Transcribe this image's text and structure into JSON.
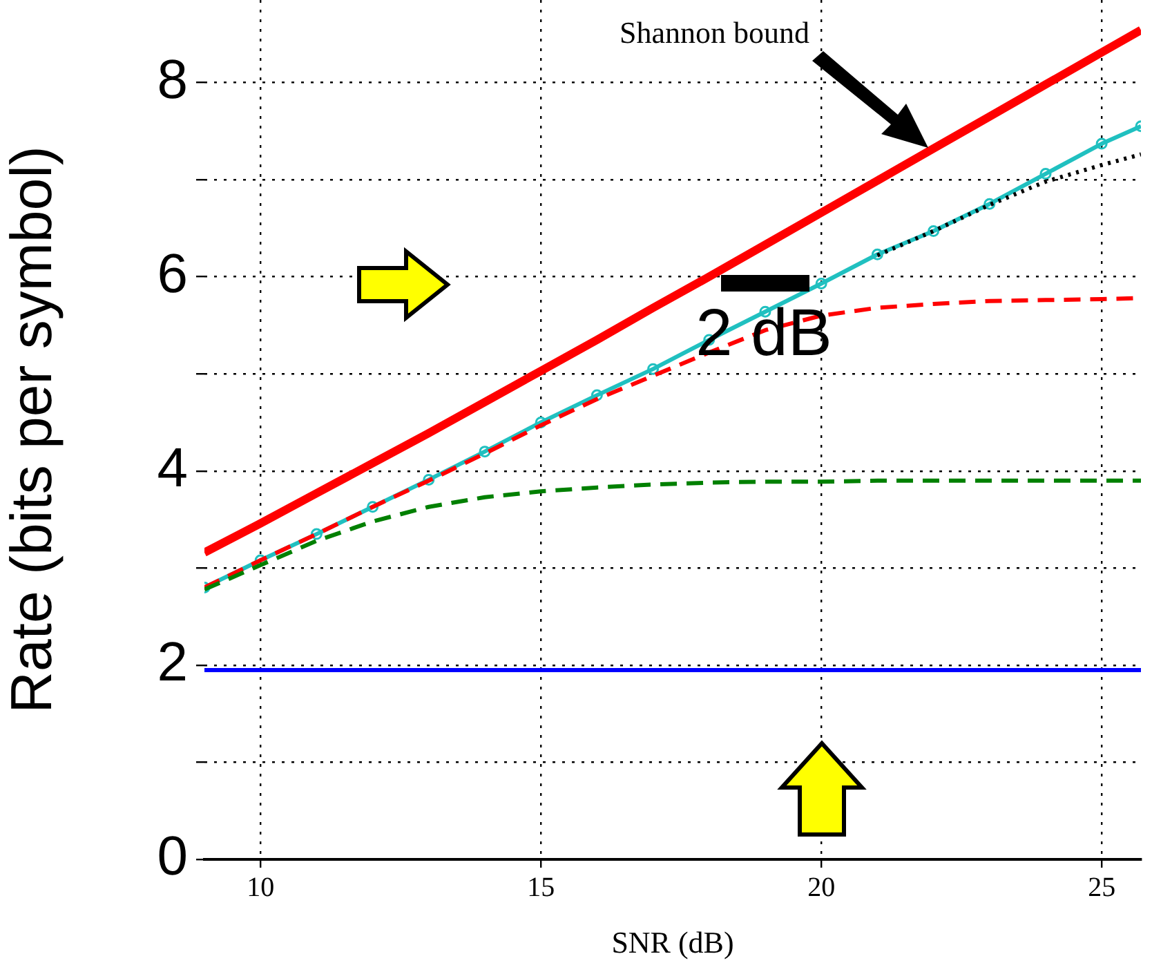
{
  "chart_data": {
    "type": "line",
    "xlabel": "SNR (dB)",
    "ylabel": "Rate (bits per symbol)",
    "x": [
      9,
      10,
      11,
      12,
      13,
      14,
      15,
      16,
      17,
      18,
      19,
      20,
      21,
      22,
      23,
      24,
      25,
      25.7
    ],
    "series": [
      {
        "color": "#ff0000",
        "line_style": "solid",
        "marker": "none",
        "values": [
          3.16,
          3.46,
          3.77,
          4.08,
          4.39,
          4.71,
          5.03,
          5.35,
          5.68,
          6.0,
          6.33,
          6.66,
          6.99,
          7.32,
          7.65,
          7.98,
          8.31,
          8.54
        ]
      },
      {
        "color": "#0000ff",
        "line_style": "solid",
        "marker": "none",
        "values": [
          1.95,
          1.95,
          1.95,
          1.95,
          1.95,
          1.95,
          1.95,
          1.95,
          1.95,
          1.95,
          1.95,
          1.95,
          1.95,
          1.95,
          1.95,
          1.95,
          1.95,
          1.95
        ]
      },
      {
        "color": "#008000",
        "line_style": "dashed",
        "marker": "none",
        "values": [
          2.78,
          3.03,
          3.28,
          3.48,
          3.63,
          3.73,
          3.79,
          3.83,
          3.86,
          3.88,
          3.89,
          3.89,
          3.9,
          3.9,
          3.9,
          3.9,
          3.9,
          3.9
        ]
      },
      {
        "color": "#ff0000",
        "line_style": "dashed",
        "marker": "none",
        "values": [
          2.8,
          3.08,
          3.35,
          3.63,
          3.9,
          4.18,
          4.47,
          4.74,
          4.98,
          5.22,
          5.45,
          5.6,
          5.68,
          5.72,
          5.75,
          5.76,
          5.77,
          5.78
        ]
      },
      {
        "color": "#000000",
        "line_style": "dotted",
        "marker": "none",
        "x": [
          21,
          22,
          23,
          24,
          25,
          25.7
        ],
        "values": [
          6.22,
          6.47,
          6.74,
          6.98,
          7.15,
          7.26
        ]
      },
      {
        "color": "#20c0c0",
        "line_style": "solid",
        "marker": "circle",
        "values": [
          2.8,
          3.08,
          3.35,
          3.63,
          3.91,
          4.2,
          4.5,
          4.78,
          5.05,
          5.35,
          5.64,
          5.93,
          6.23,
          6.47,
          6.75,
          7.06,
          7.37,
          7.55
        ]
      }
    ],
    "xlim": [
      9,
      25.7
    ],
    "xticks": [
      10,
      15,
      20,
      25
    ],
    "ylim": [
      0,
      8.85
    ],
    "yticks": [
      0,
      {
        "value": 1,
        "label": null
      },
      2,
      {
        "value": 3,
        "label": null
      },
      4,
      {
        "value": 5,
        "label": null
      },
      6,
      {
        "value": 7,
        "label": null
      },
      8
    ],
    "grid": true,
    "legend": false,
    "annotations": [
      "Shannon bound",
      "2 dB"
    ]
  }
}
